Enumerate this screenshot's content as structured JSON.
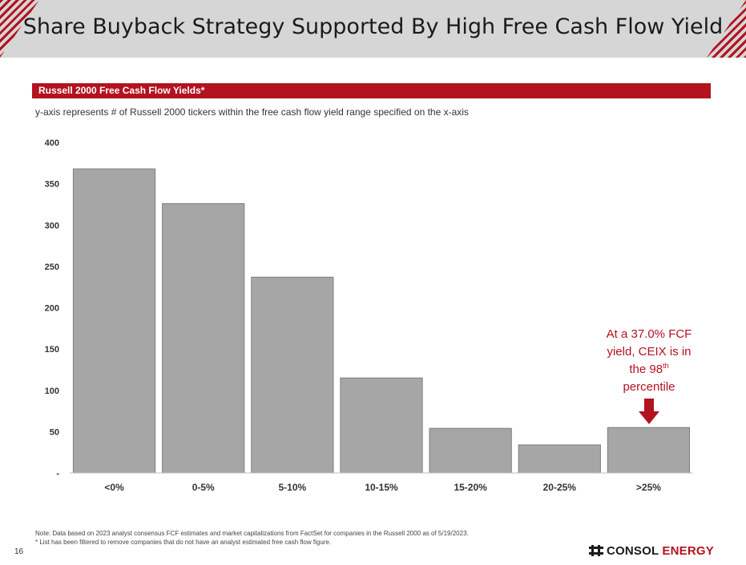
{
  "slide": {
    "title": "Share Buyback Strategy Supported By High Free Cash Flow Yield",
    "section_title": "Russell 2000 Free Cash Flow Yields*",
    "subtitle": "y-axis represents # of Russell 2000 tickers within the free cash flow yield range specified on the x-axis",
    "annotation": {
      "line1": "At a 37.0% FCF",
      "line2": "yield, CEIX is in",
      "line3_pre": "the 98",
      "line3_sup": "th",
      "line4": "percentile"
    },
    "note_line1": "Note: Data based on 2023 analyst consensus FCF estimates and market capitalizations from FactSet for companies in the Russell 2000 as of 5/19/2023.",
    "note_line2": "* List has been filtered to remove companies that do not have an analyst estimated free cash flow figure.",
    "page_number": "16",
    "logo": {
      "word1": "CONSOL",
      "word2": "ENERGY"
    }
  },
  "colors": {
    "accent": "#b3121f",
    "bar": "#a6a6a6",
    "bar_outline": "#7f7f7f",
    "title_band": "#d6d6d6"
  },
  "chart_data": {
    "type": "bar",
    "categories": [
      "<0%",
      "0-5%",
      "5-10%",
      "10-15%",
      "15-20%",
      "20-25%",
      ">25%"
    ],
    "values": [
      368,
      326,
      237,
      115,
      54,
      34,
      55
    ],
    "ylim": [
      0,
      400
    ],
    "yticks": [
      0,
      50,
      100,
      150,
      200,
      250,
      300,
      350,
      400
    ],
    "ytick_labels": [
      "-",
      "50",
      "100",
      "150",
      "200",
      "250",
      "300",
      "350",
      "400"
    ],
    "grid": false
  }
}
